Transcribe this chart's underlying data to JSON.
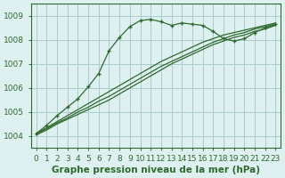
{
  "bg_color": "#dff0f0",
  "grid_color": "#aacccc",
  "line_color": "#2d6a2d",
  "xlabel": "Graphe pression niveau de la mer (hPa)",
  "ylim": [
    1003.5,
    1009.5
  ],
  "xlim": [
    -0.5,
    23.5
  ],
  "yticks": [
    1004,
    1005,
    1006,
    1007,
    1008,
    1009
  ],
  "xticks": [
    0,
    1,
    2,
    3,
    4,
    5,
    6,
    7,
    8,
    9,
    10,
    11,
    12,
    13,
    14,
    15,
    16,
    17,
    18,
    19,
    20,
    21,
    22,
    23
  ],
  "peak_line": [
    1004.1,
    1004.45,
    1004.85,
    1005.2,
    1005.55,
    1006.05,
    1006.6,
    1007.55,
    1008.1,
    1008.55,
    1008.8,
    1008.85,
    1008.75,
    1008.6,
    1008.7,
    1008.65,
    1008.6,
    1008.35,
    1008.05,
    1007.95,
    1008.05,
    1008.3,
    1008.5,
    1008.65
  ],
  "linear1": [
    1004.05,
    1004.25,
    1004.5,
    1004.7,
    1004.9,
    1005.1,
    1005.3,
    1005.5,
    1005.75,
    1006.0,
    1006.25,
    1006.5,
    1006.75,
    1007.0,
    1007.2,
    1007.4,
    1007.6,
    1007.8,
    1007.95,
    1008.1,
    1008.2,
    1008.35,
    1008.45,
    1008.6
  ],
  "linear2": [
    1004.1,
    1004.3,
    1004.55,
    1004.75,
    1005.0,
    1005.2,
    1005.45,
    1005.65,
    1005.9,
    1006.15,
    1006.4,
    1006.65,
    1006.9,
    1007.1,
    1007.3,
    1007.5,
    1007.7,
    1007.9,
    1008.05,
    1008.2,
    1008.3,
    1008.45,
    1008.55,
    1008.65
  ],
  "linear3": [
    1004.1,
    1004.35,
    1004.6,
    1004.85,
    1005.1,
    1005.35,
    1005.6,
    1005.85,
    1006.1,
    1006.35,
    1006.6,
    1006.85,
    1007.1,
    1007.3,
    1007.5,
    1007.7,
    1007.9,
    1008.05,
    1008.2,
    1008.3,
    1008.4,
    1008.5,
    1008.6,
    1008.7
  ],
  "tick_fontsize": 6.5,
  "xlabel_fontsize": 7.5
}
